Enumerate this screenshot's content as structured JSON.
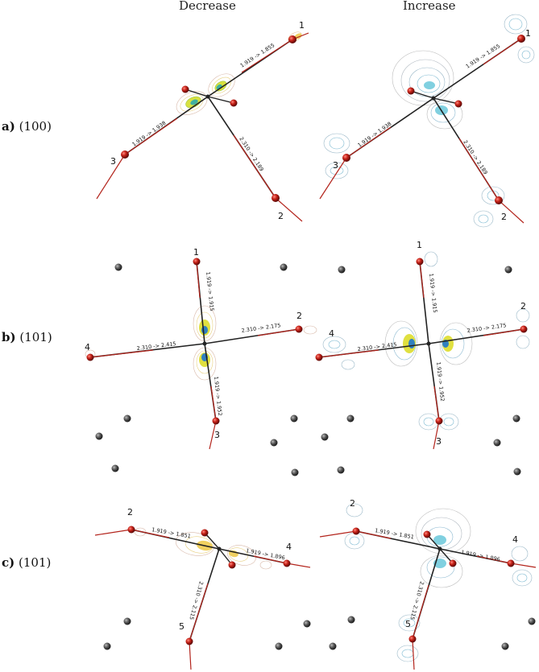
{
  "columns": {
    "left": "Decrease",
    "right": "Increase"
  },
  "rows": [
    {
      "letter": "a)",
      "plane": "(100)",
      "left": {
        "numbers": [
          "1",
          "3",
          "2"
        ],
        "bonds": [
          "1.919 -> 1.855",
          "1.919 -> 1.938",
          "2.310 -> 2.189"
        ]
      },
      "right": {
        "numbers": [
          "1",
          "3",
          "2"
        ],
        "bonds": [
          "1.919 -> 1.855",
          "1.919 -> 1.938",
          "2.310 -> 2.189"
        ]
      }
    },
    {
      "letter": "b)",
      "plane": "(101)",
      "left": {
        "numbers": [
          "1",
          "2",
          "4",
          "3"
        ],
        "bonds": [
          "1.919 -> 1.915",
          "2.310 -> 2.175",
          "2.310 -> 2.415",
          "1.919 -> 1.952"
        ]
      },
      "right": {
        "numbers": [
          "1",
          "2",
          "4",
          "3"
        ],
        "bonds": [
          "1.919 -> 1.915",
          "2.310 -> 2.175",
          "2.310 -> 2.415",
          "1.919 -> 1.952"
        ]
      }
    },
    {
      "letter": "c)",
      "plane": "(101)",
      "left": {
        "numbers": [
          "2",
          "4",
          "5"
        ],
        "bonds": [
          "1.919 -> 1.851",
          "1.919 -> 1.896",
          "2.310 -> 2.115"
        ]
      },
      "right": {
        "numbers": [
          "2",
          "4",
          "5"
        ],
        "bonds": [
          "1.919 -> 1.851",
          "1.919 -> 1.896",
          "2.310 -> 2.115"
        ]
      }
    }
  ],
  "colors": {
    "bond": "#b3241c",
    "bond_dark": "#222222",
    "atom_red": "#b61a14",
    "atom_grey": "#555555",
    "contour_decrease": "#f0b040",
    "contour_increase": "#5fb0d8"
  }
}
